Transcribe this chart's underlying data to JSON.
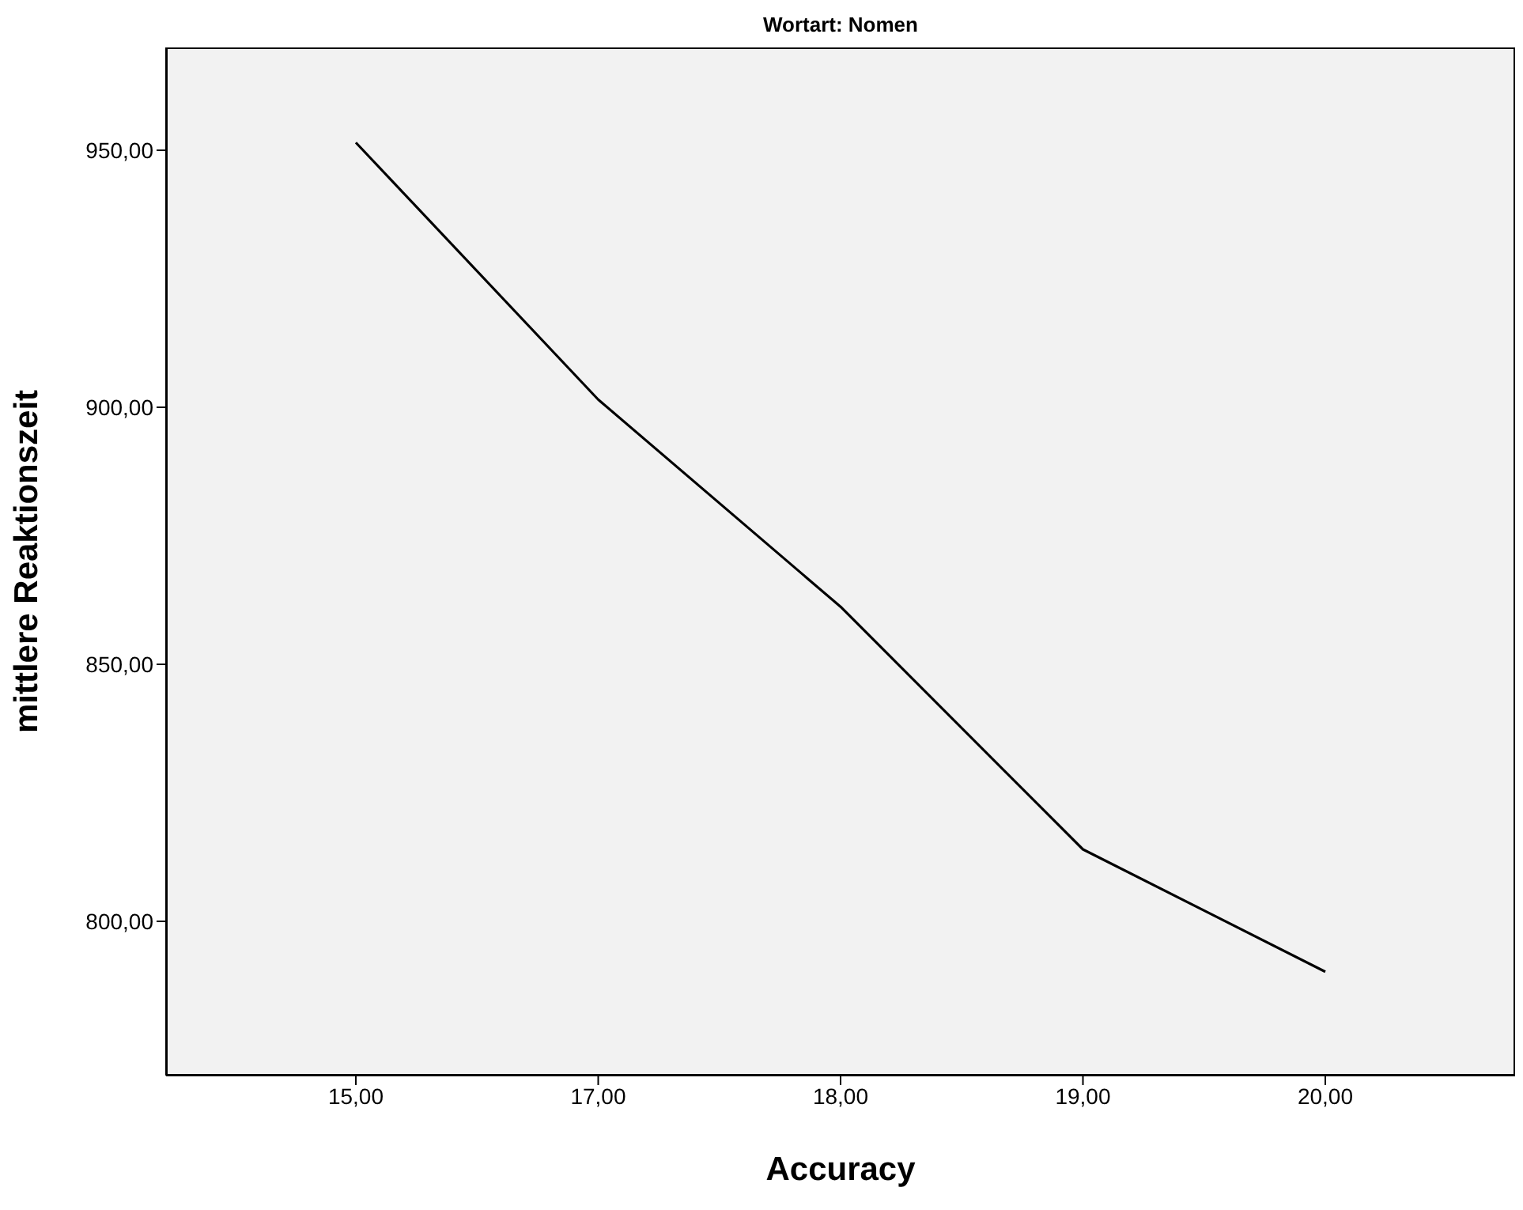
{
  "chart_data": {
    "type": "line",
    "title": "Wortart: Nomen",
    "xlabel": "Accuracy",
    "ylabel": "mittlere Reaktionszeit",
    "categories": [
      "15,00",
      "17,00",
      "18,00",
      "19,00",
      "20,00"
    ],
    "series": [
      {
        "color": "#000000",
        "values": [
          951.5,
          901.5,
          861.2,
          814,
          790.2
        ]
      }
    ],
    "ylim": [
      770,
      970
    ],
    "yticks": [
      {
        "value": 800,
        "label": "800,00"
      },
      {
        "value": 850,
        "label": "850,00"
      },
      {
        "value": 900,
        "label": "900,00"
      },
      {
        "value": 950,
        "label": "950,00"
      }
    ],
    "marker": "none",
    "line_style": "solid"
  }
}
